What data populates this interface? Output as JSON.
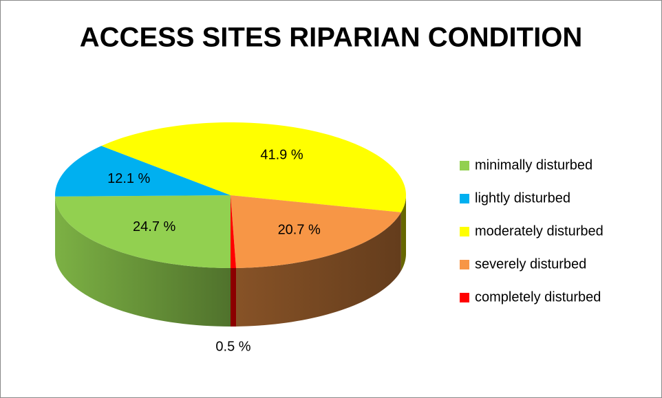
{
  "chart_data": {
    "type": "pie3d",
    "title": "ACCESS SITES RIPARIAN CONDITION",
    "categories": [
      "minimally disturbed",
      "lightly disturbed",
      "moderately disturbed",
      "severely disturbed",
      "completely disturbed"
    ],
    "values": [
      24.7,
      12.1,
      41.9,
      20.7,
      0.5
    ],
    "value_labels": [
      "24.7 %",
      "12.1 %",
      "41.9 %",
      "20.7 %",
      "0.5 %"
    ],
    "colors": [
      "#92d050",
      "#00b0f0",
      "#ffff00",
      "#f79646",
      "#ff0000"
    ],
    "legend": "right"
  }
}
